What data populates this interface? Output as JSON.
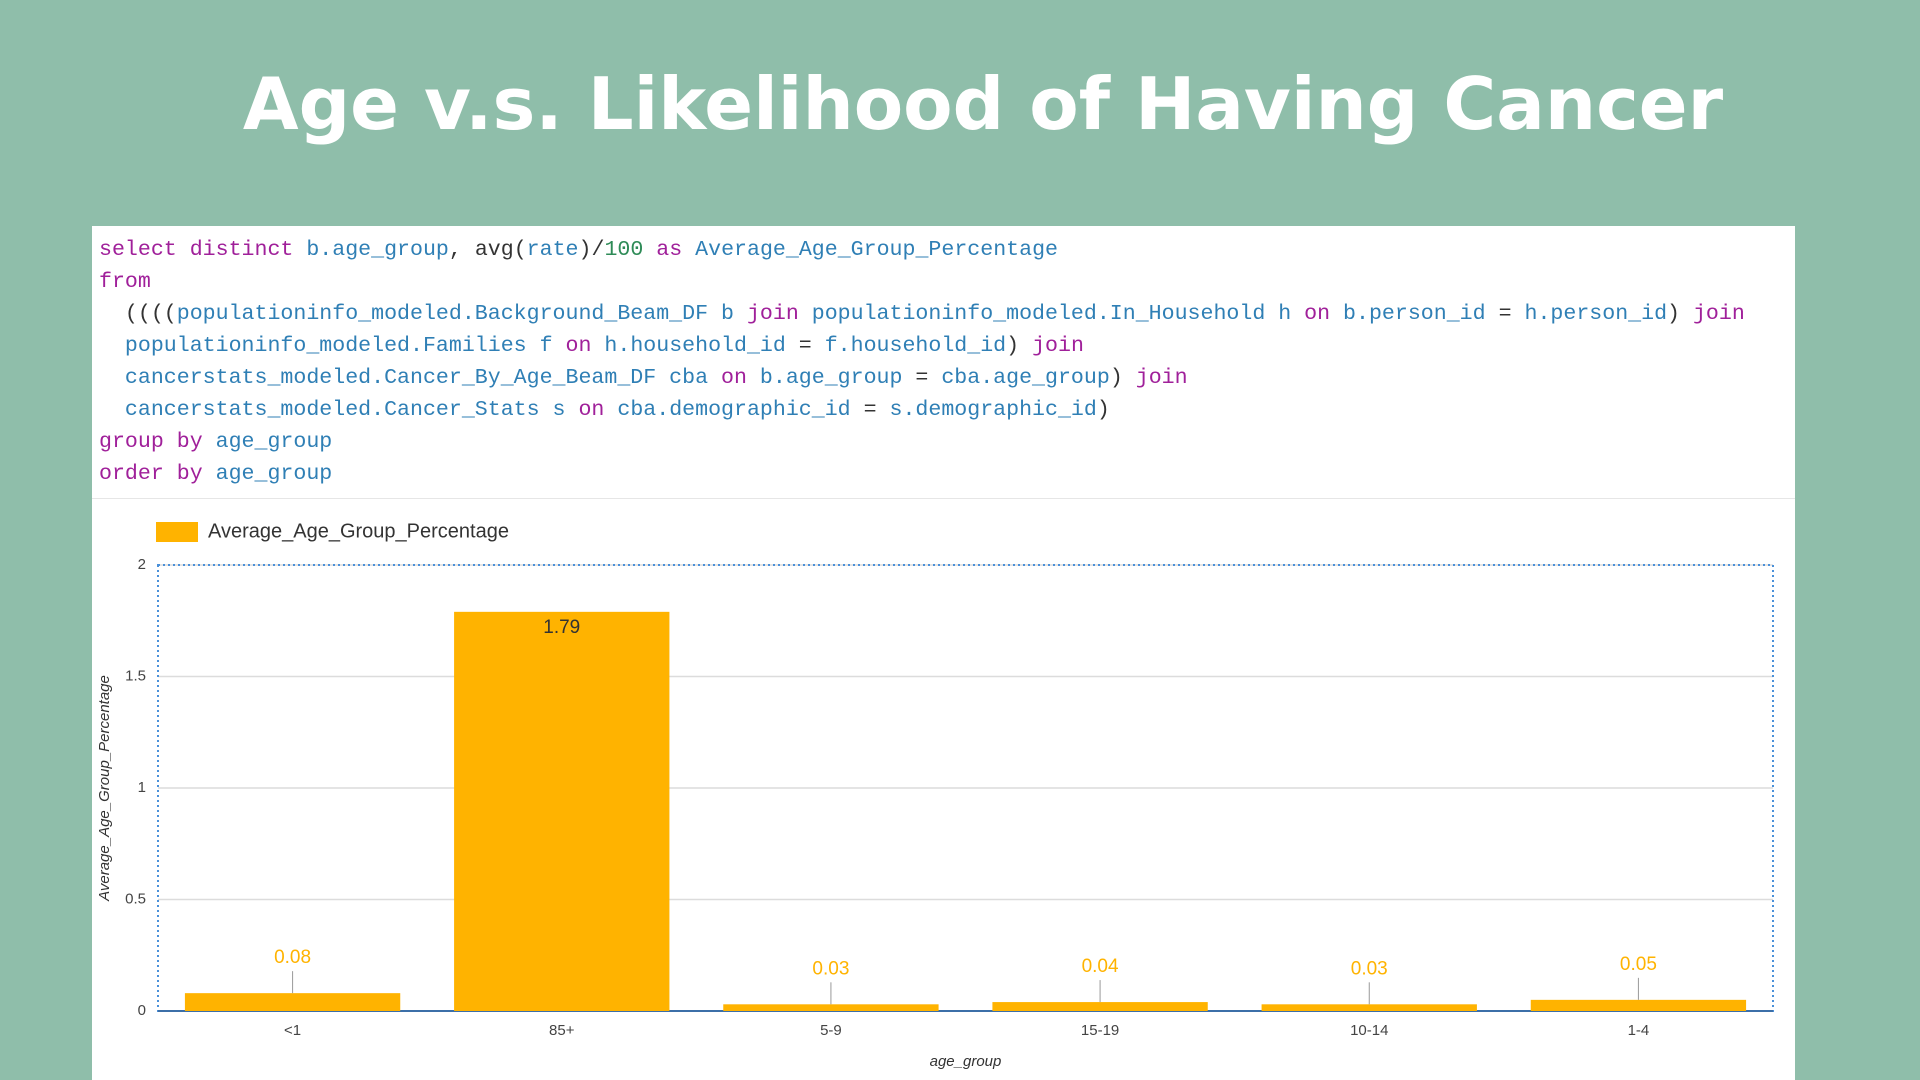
{
  "title": "Age v.s. Likelihood of Having Cancer",
  "code": [
    [
      {
        "text": "select distinct",
        "color": "#a0209a"
      },
      {
        "text": " b.age_group",
        "color": "#2f7fb5"
      },
      {
        "text": ", avg(",
        "color": "#333333"
      },
      {
        "text": "rate",
        "color": "#2f7fb5"
      },
      {
        "text": ")/",
        "color": "#333333"
      },
      {
        "text": "100",
        "color": "#2e8b57"
      },
      {
        "text": " as",
        "color": "#a0209a"
      },
      {
        "text": " Average_Age_Group_Percentage",
        "color": "#2f7fb5"
      }
    ],
    [
      {
        "text": "from",
        "color": "#a0209a"
      }
    ],
    [
      {
        "text": "  ((((",
        "color": "#333333"
      },
      {
        "text": "populationinfo_modeled.Background_Beam_DF b",
        "color": "#2f7fb5"
      },
      {
        "text": " join",
        "color": "#a0209a"
      },
      {
        "text": " populationinfo_modeled.In_Household h",
        "color": "#2f7fb5"
      },
      {
        "text": " on",
        "color": "#a0209a"
      },
      {
        "text": " b.person_id",
        "color": "#2f7fb5"
      },
      {
        "text": " = ",
        "color": "#333333"
      },
      {
        "text": "h.person_id",
        "color": "#2f7fb5"
      },
      {
        "text": ") ",
        "color": "#333333"
      },
      {
        "text": "join",
        "color": "#a0209a"
      }
    ],
    [
      {
        "text": "  populationinfo_modeled.Families f",
        "color": "#2f7fb5"
      },
      {
        "text": " on",
        "color": "#a0209a"
      },
      {
        "text": " h.household_id",
        "color": "#2f7fb5"
      },
      {
        "text": " = ",
        "color": "#333333"
      },
      {
        "text": "f.household_id",
        "color": "#2f7fb5"
      },
      {
        "text": ") ",
        "color": "#333333"
      },
      {
        "text": "join",
        "color": "#a0209a"
      }
    ],
    [
      {
        "text": "  cancerstats_modeled.Cancer_By_Age_Beam_DF cba",
        "color": "#2f7fb5"
      },
      {
        "text": " on",
        "color": "#a0209a"
      },
      {
        "text": " b.age_group",
        "color": "#2f7fb5"
      },
      {
        "text": " = ",
        "color": "#333333"
      },
      {
        "text": "cba.age_group",
        "color": "#2f7fb5"
      },
      {
        "text": ") ",
        "color": "#333333"
      },
      {
        "text": "join",
        "color": "#a0209a"
      }
    ],
    [
      {
        "text": "  cancerstats_modeled.Cancer_Stats s",
        "color": "#2f7fb5"
      },
      {
        "text": " on",
        "color": "#a0209a"
      },
      {
        "text": " cba.demographic_id",
        "color": "#2f7fb5"
      },
      {
        "text": " = ",
        "color": "#333333"
      },
      {
        "text": "s.demographic_id",
        "color": "#2f7fb5"
      },
      {
        "text": ")",
        "color": "#333333"
      }
    ],
    [
      {
        "text": "group by",
        "color": "#a0209a"
      },
      {
        "text": " age_group",
        "color": "#2f7fb5"
      }
    ],
    [
      {
        "text": "order by",
        "color": "#a0209a"
      },
      {
        "text": " age_group",
        "color": "#2f7fb5"
      }
    ]
  ],
  "chart_data": {
    "type": "bar",
    "x_label": "age_group",
    "y_label": "Average_Age_Group_Percentage",
    "categories": [
      "<1",
      "85+",
      "5-9",
      "15-19",
      "10-14",
      "1-4"
    ],
    "series": [
      {
        "name": "Average_Age_Group_Percentage",
        "color": "#ffb300",
        "values": [
          0.08,
          1.79,
          0.03,
          0.04,
          0.03,
          0.05
        ]
      }
    ],
    "ylim": [
      0,
      2
    ],
    "yticks": [
      0,
      0.5,
      1,
      1.5,
      2
    ],
    "grid": true,
    "value_labels": true
  }
}
